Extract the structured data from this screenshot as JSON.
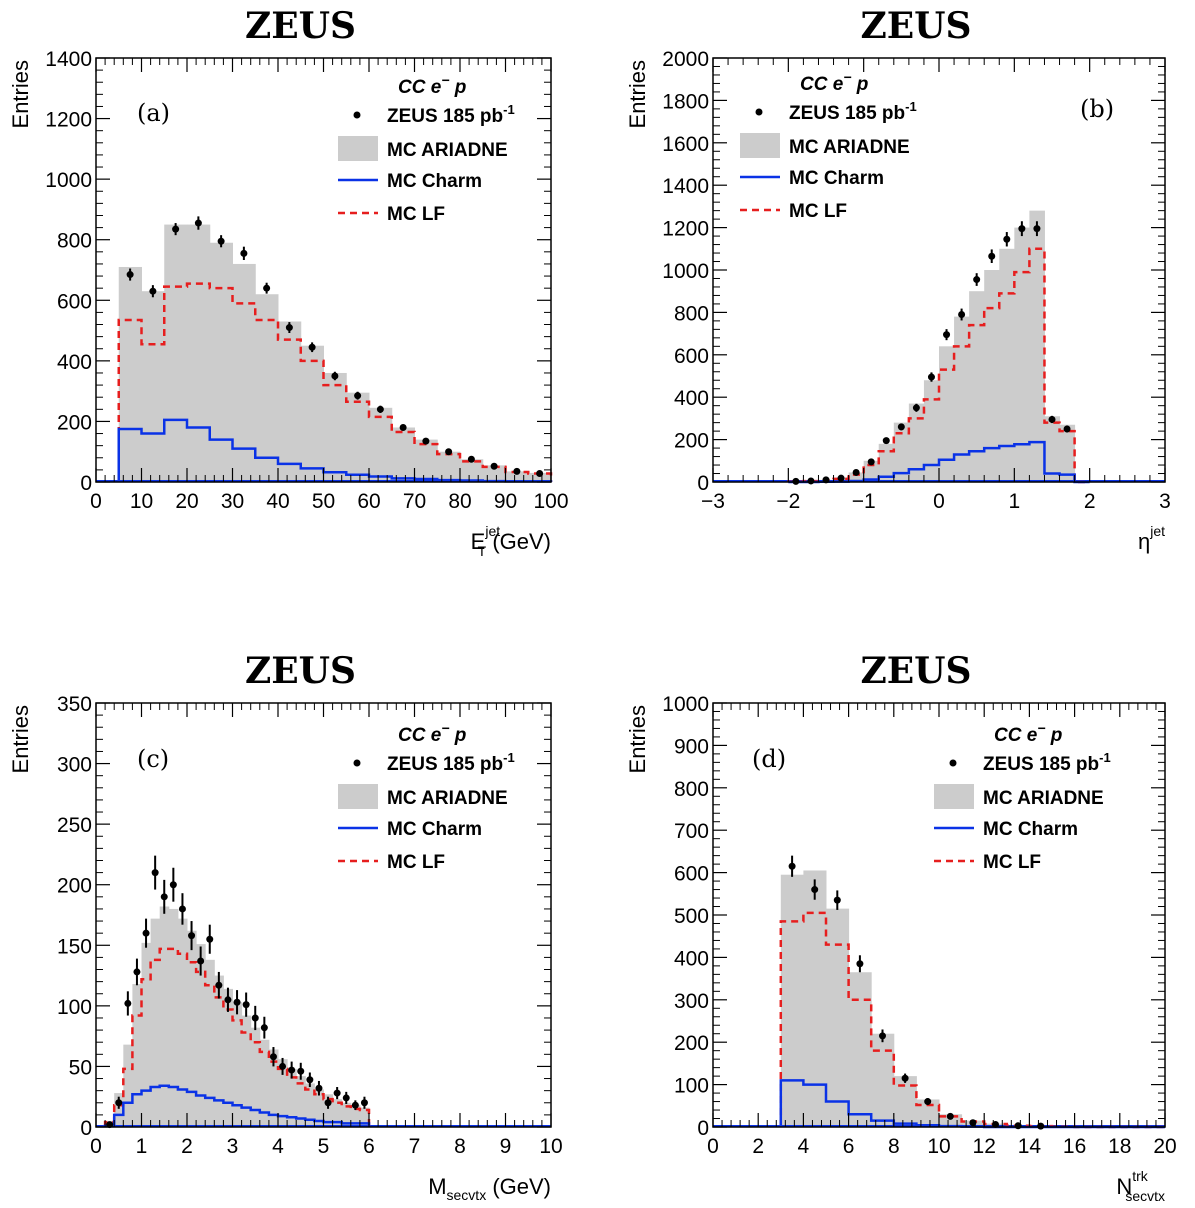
{
  "legend": {
    "process": "CC e",
    "process_sup": "−",
    "process_end": " p",
    "data_label": "ZEUS 185 pb",
    "data_label_sup": "-1",
    "mc_ariadne": "MC ARIADNE",
    "mc_charm": "MC Charm",
    "mc_lf": "MC LF"
  },
  "colors": {
    "mc_fill": "#cccccc",
    "charm_line": "#0a32e6",
    "lf_line": "#e61e1e",
    "data_marker": "#000000"
  },
  "chart_data": [
    {
      "type": "bar",
      "panel_label": "(a)",
      "title": "ZEUS",
      "ylabel": "Entries",
      "xlabel_main": "E",
      "xlabel_sub": "T",
      "xlabel_sup": "jet",
      "xlabel_unit": " (GeV)",
      "xlim": [
        0,
        100
      ],
      "ylim": [
        0,
        1400
      ],
      "xticks": [
        "0",
        "10",
        "20",
        "30",
        "40",
        "50",
        "60",
        "70",
        "80",
        "90",
        "100"
      ],
      "yticks": [
        "0",
        "200",
        "400",
        "600",
        "800",
        "1000",
        "1200",
        "1400"
      ],
      "bin_edges": [
        5,
        10,
        15,
        20,
        25,
        30,
        35,
        40,
        45,
        50,
        55,
        60,
        65,
        70,
        75,
        80,
        85,
        90,
        95,
        100
      ],
      "series": [
        {
          "name": "MC ARIADNE",
          "style": "filled",
          "values": [
            710,
            630,
            850,
            850,
            790,
            720,
            620,
            530,
            450,
            360,
            295,
            245,
            180,
            140,
            100,
            75,
            55,
            35,
            30
          ]
        },
        {
          "name": "MC LF",
          "style": "dashed",
          "values": [
            535,
            455,
            645,
            655,
            640,
            590,
            535,
            470,
            400,
            320,
            265,
            215,
            165,
            125,
            92,
            68,
            50,
            33,
            28
          ]
        },
        {
          "name": "MC Charm",
          "style": "solid",
          "values": [
            175,
            160,
            205,
            180,
            140,
            110,
            80,
            60,
            45,
            32,
            24,
            18,
            12,
            10,
            6,
            5,
            3,
            2,
            2
          ]
        },
        {
          "name": "ZEUS 185 pb-1",
          "style": "points",
          "x": [
            7.5,
            12.5,
            17.5,
            22.5,
            27.5,
            32.5,
            37.5,
            42.5,
            47.5,
            52.5,
            57.5,
            62.5,
            67.5,
            72.5,
            77.5,
            82.5,
            87.5,
            92.5,
            97.5
          ],
          "values": [
            685,
            630,
            835,
            855,
            795,
            755,
            640,
            510,
            445,
            350,
            285,
            240,
            180,
            135,
            100,
            75,
            52,
            35,
            28
          ],
          "errors": [
            20,
            20,
            20,
            22,
            20,
            22,
            18,
            18,
            16,
            14,
            13,
            12,
            10,
            9,
            8,
            7,
            6,
            5,
            5
          ]
        }
      ]
    },
    {
      "type": "bar",
      "panel_label": "(b)",
      "title": "ZEUS",
      "ylabel": "Entries",
      "xlabel_main": "η",
      "xlabel_sub": "",
      "xlabel_sup": "jet",
      "xlabel_unit": "",
      "xlim": [
        -3,
        3
      ],
      "ylim": [
        0,
        2000
      ],
      "xticks": [
        "−3",
        "−2",
        "−1",
        "0",
        "1",
        "2",
        "3"
      ],
      "yticks": [
        "0",
        "200",
        "400",
        "600",
        "800",
        "1000",
        "1200",
        "1400",
        "1600",
        "1800",
        "2000"
      ],
      "bin_edges": [
        -2,
        -1.8,
        -1.6,
        -1.4,
        -1.2,
        -1,
        -0.8,
        -0.6,
        -0.4,
        -0.2,
        0,
        0.2,
        0.4,
        0.6,
        0.8,
        1,
        1.2,
        1.4,
        1.6,
        1.8,
        2
      ],
      "series": [
        {
          "name": "MC ARIADNE",
          "style": "filled",
          "values": [
            3,
            5,
            10,
            20,
            45,
            100,
            180,
            280,
            370,
            480,
            640,
            780,
            900,
            1000,
            1100,
            1200,
            1280,
            310,
            270,
            0
          ]
        },
        {
          "name": "MC LF",
          "style": "dashed",
          "values": [
            2,
            4,
            8,
            15,
            35,
            80,
            145,
            230,
            300,
            390,
            530,
            640,
            740,
            820,
            890,
            990,
            1100,
            280,
            240,
            0
          ]
        },
        {
          "name": "MC Charm",
          "style": "solid",
          "values": [
            0,
            0,
            1,
            2,
            5,
            12,
            25,
            42,
            60,
            80,
            105,
            130,
            145,
            160,
            170,
            178,
            188,
            40,
            35,
            0
          ]
        },
        {
          "name": "ZEUS 185 pb-1",
          "style": "points",
          "x": [
            -1.9,
            -1.7,
            -1.5,
            -1.3,
            -1.1,
            -0.9,
            -0.7,
            -0.5,
            -0.3,
            -0.1,
            0.1,
            0.3,
            0.5,
            0.7,
            0.9,
            1.1,
            1.3,
            1.5,
            1.7
          ],
          "values": [
            3,
            5,
            10,
            18,
            45,
            95,
            195,
            260,
            350,
            495,
            695,
            790,
            955,
            1065,
            1145,
            1195,
            1195,
            295,
            250
          ],
          "errors": [
            2,
            2,
            3,
            4,
            7,
            10,
            14,
            16,
            19,
            22,
            26,
            28,
            30,
            32,
            34,
            35,
            35,
            17,
            16
          ]
        }
      ]
    },
    {
      "type": "bar",
      "panel_label": "(c)",
      "title": "ZEUS",
      "ylabel": "Entries",
      "xlabel_main": "M",
      "xlabel_sub": "secvtx",
      "xlabel_sup": "",
      "xlabel_unit": " (GeV)",
      "xlim": [
        0,
        10
      ],
      "ylim": [
        0,
        350
      ],
      "xticks": [
        "0",
        "1",
        "2",
        "3",
        "4",
        "5",
        "6",
        "7",
        "8",
        "9",
        "10"
      ],
      "yticks": [
        "0",
        "50",
        "100",
        "150",
        "200",
        "250",
        "300",
        "350"
      ],
      "bin_edges": [
        0.2,
        0.4,
        0.6,
        0.8,
        1,
        1.2,
        1.4,
        1.6,
        1.8,
        2,
        2.2,
        2.4,
        2.6,
        2.8,
        3,
        3.2,
        3.4,
        3.6,
        3.8,
        4,
        4.2,
        4.4,
        4.6,
        4.8,
        5,
        5.2,
        5.4,
        5.6,
        5.8,
        6
      ],
      "series": [
        {
          "name": "MC ARIADNE",
          "style": "filled",
          "values": [
            5,
            28,
            68,
            118,
            152,
            172,
            182,
            180,
            172,
            162,
            151,
            138,
            125,
            114,
            103,
            92,
            82,
            72,
            64,
            56,
            48,
            42,
            36,
            31,
            27,
            23,
            20,
            18,
            16
          ]
        },
        {
          "name": "MC LF",
          "style": "dashed",
          "values": [
            4,
            18,
            48,
            92,
            122,
            138,
            147,
            147,
            143,
            136,
            128,
            117,
            107,
            97,
            88,
            78,
            70,
            62,
            54,
            48,
            41,
            36,
            31,
            27,
            23,
            20,
            17,
            15,
            14
          ]
        },
        {
          "name": "MC Charm",
          "style": "solid",
          "values": [
            1,
            10,
            20,
            27,
            30,
            33,
            34,
            33,
            31,
            29,
            26,
            24,
            22,
            20,
            18,
            16,
            14,
            12,
            10,
            9,
            8,
            7,
            6,
            5,
            4,
            4,
            3,
            3,
            3
          ]
        },
        {
          "name": "ZEUS 185 pb-1",
          "style": "points",
          "x": [
            0.3,
            0.5,
            0.7,
            0.9,
            1.1,
            1.3,
            1.5,
            1.7,
            1.9,
            2.1,
            2.3,
            2.5,
            2.7,
            2.9,
            3.1,
            3.3,
            3.5,
            3.7,
            3.9,
            4.1,
            4.3,
            4.5,
            4.7,
            4.9,
            5.1,
            5.3,
            5.5,
            5.7,
            5.9
          ],
          "values": [
            2,
            20,
            102,
            128,
            160,
            210,
            190,
            200,
            180,
            158,
            137,
            155,
            117,
            105,
            103,
            101,
            90,
            82,
            58,
            50,
            47,
            46,
            39,
            32,
            20,
            28,
            24,
            18,
            20
          ],
          "errors": [
            2,
            5,
            10,
            11,
            12,
            14,
            14,
            14,
            13,
            12,
            12,
            12,
            11,
            10,
            10,
            10,
            10,
            9,
            8,
            7,
            7,
            7,
            6,
            6,
            5,
            5,
            5,
            4,
            5
          ]
        }
      ]
    },
    {
      "type": "bar",
      "panel_label": "(d)",
      "title": "ZEUS",
      "ylabel": "Entries",
      "xlabel_main": "N",
      "xlabel_sub": "secvtx",
      "xlabel_sup": "trk",
      "xlabel_unit": "",
      "xlim": [
        0,
        20
      ],
      "ylim": [
        0,
        1000
      ],
      "xticks": [
        "0",
        "2",
        "4",
        "6",
        "8",
        "10",
        "12",
        "14",
        "16",
        "18",
        "20"
      ],
      "yticks": [
        "0",
        "100",
        "200",
        "300",
        "400",
        "500",
        "600",
        "700",
        "800",
        "900",
        "1000"
      ],
      "bin_edges": [
        3,
        4,
        5,
        6,
        7,
        8,
        9,
        10,
        11,
        12,
        13,
        14,
        15,
        16,
        17,
        18,
        19,
        20
      ],
      "series": [
        {
          "name": "MC ARIADNE",
          "style": "filled",
          "values": [
            595,
            605,
            515,
            365,
            220,
            120,
            65,
            30,
            15,
            8,
            4,
            2,
            1,
            0,
            0,
            0,
            0
          ]
        },
        {
          "name": "MC LF",
          "style": "dashed",
          "values": [
            485,
            505,
            430,
            300,
            180,
            98,
            52,
            25,
            13,
            7,
            3,
            2,
            1,
            0,
            0,
            0,
            0
          ]
        },
        {
          "name": "MC Charm",
          "style": "solid",
          "values": [
            110,
            100,
            60,
            30,
            15,
            8,
            4,
            2,
            1,
            0,
            0,
            0,
            0,
            0,
            0,
            0,
            0
          ]
        },
        {
          "name": "ZEUS 185 pb-1",
          "style": "points",
          "x": [
            3.5,
            4.5,
            5.5,
            6.5,
            7.5,
            8.5,
            9.5,
            10.5,
            11.5,
            12.5,
            13.5,
            14.5
          ],
          "values": [
            615,
            560,
            535,
            385,
            215,
            115,
            60,
            25,
            10,
            6,
            3,
            2
          ],
          "errors": [
            25,
            24,
            23,
            20,
            15,
            11,
            8,
            5,
            3,
            2,
            2,
            1
          ]
        }
      ]
    }
  ]
}
